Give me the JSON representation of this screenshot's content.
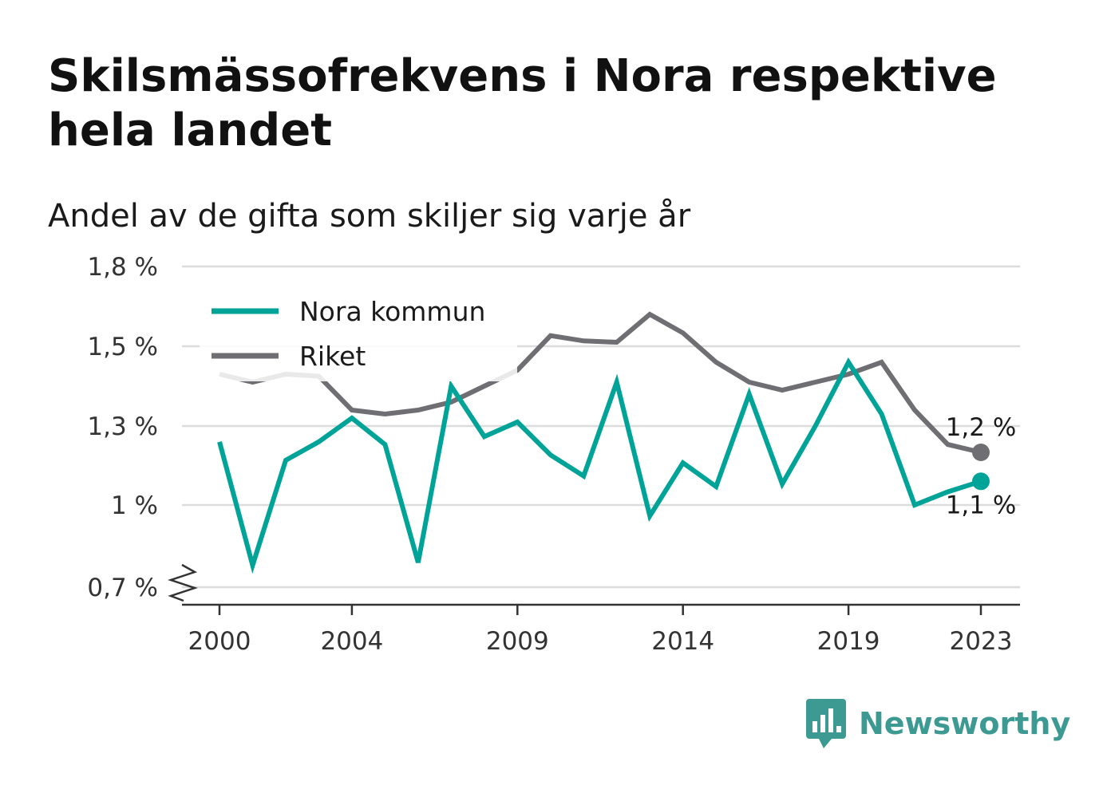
{
  "title": "Skilsmässofrekvens i Nora respektive hela landet",
  "subtitle": "Andel av de gifta som skiljer sig varje år",
  "brand": {
    "name": "Newsworthy",
    "icon": "newsworthy-logo-icon",
    "color": "#3d9a93"
  },
  "chart_data": {
    "type": "line",
    "x": [
      2000,
      2001,
      2002,
      2003,
      2004,
      2005,
      2006,
      2007,
      2008,
      2009,
      2010,
      2011,
      2012,
      2013,
      2014,
      2015,
      2016,
      2017,
      2018,
      2019,
      2020,
      2021,
      2022,
      2023
    ],
    "x_ticks": [
      {
        "value": 2000,
        "label": "2000"
      },
      {
        "value": 2004,
        "label": "2004"
      },
      {
        "value": 2009,
        "label": "2009"
      },
      {
        "value": 2014,
        "label": "2014"
      },
      {
        "value": 2019,
        "label": "2019"
      },
      {
        "value": 2023,
        "label": "2023"
      }
    ],
    "y_ticks": [
      {
        "value": 0.7,
        "label": "0,7 %"
      },
      {
        "value": 1.0,
        "label": "1 %"
      },
      {
        "value": 1.3,
        "label": "1,3 %"
      },
      {
        "value": 1.5,
        "label": "1,5 %"
      },
      {
        "value": 1.8,
        "label": "1,8 %"
      }
    ],
    "ylim": [
      0.7,
      1.8
    ],
    "y_axis_break": true,
    "grid": true,
    "legend_position": "top-left",
    "series": [
      {
        "name": "Nora kommun",
        "color": "#00a398",
        "values": [
          1.24,
          0.78,
          1.17,
          1.24,
          1.32,
          1.23,
          0.79,
          1.4,
          1.26,
          1.31,
          1.19,
          1.11,
          1.41,
          0.96,
          1.16,
          1.07,
          1.38,
          1.08,
          1.3,
          1.46,
          1.33,
          1.0,
          1.05,
          1.09
        ],
        "end_label": "1,1 %"
      },
      {
        "name": "Riket",
        "color": "#6e6e73",
        "values": [
          1.43,
          1.41,
          1.43,
          1.425,
          1.34,
          1.33,
          1.34,
          1.36,
          1.4,
          1.44,
          1.54,
          1.52,
          1.515,
          1.62,
          1.55,
          1.46,
          1.41,
          1.39,
          1.41,
          1.43,
          1.46,
          1.34,
          1.23,
          1.2
        ],
        "end_label": "1,2 %"
      }
    ]
  }
}
